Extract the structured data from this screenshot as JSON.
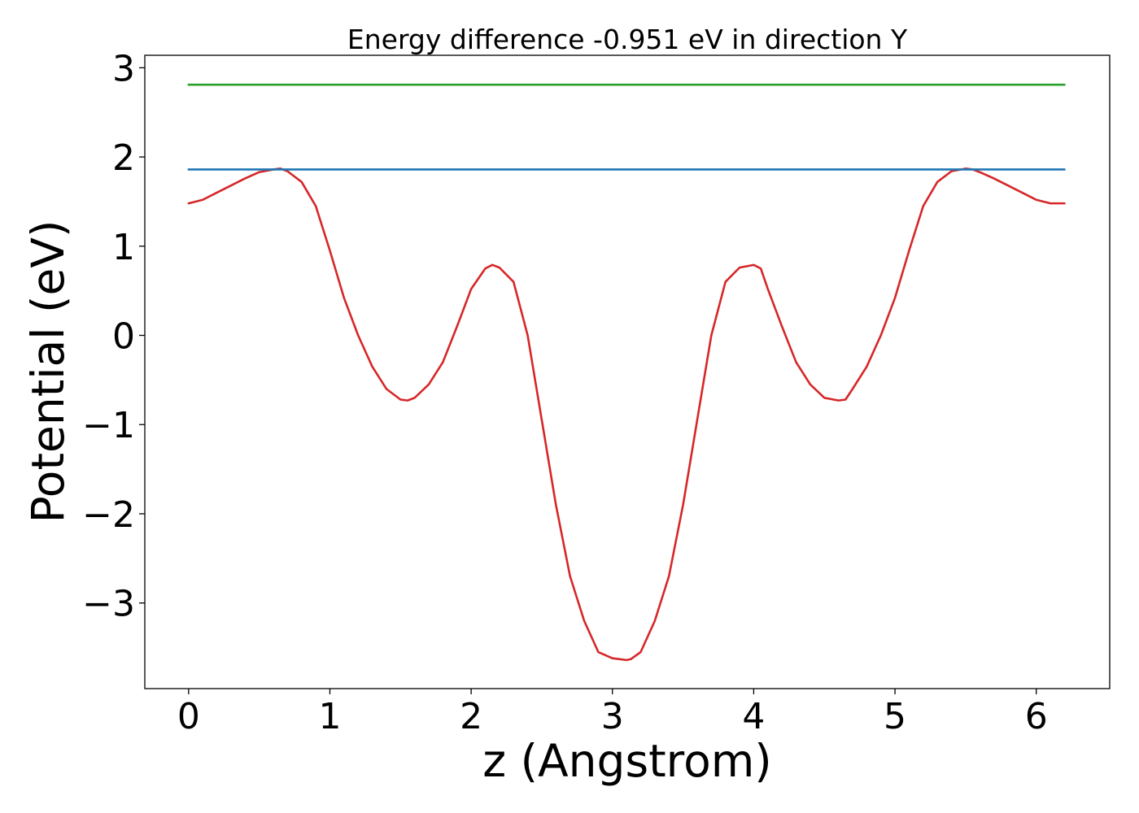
{
  "chart_data": {
    "type": "line",
    "title": "Energy difference -0.951 eV in direction Y",
    "xlabel": "z (Angstrom)",
    "ylabel": "Potential (eV)",
    "xlim": [
      -0.31,
      6.52
    ],
    "ylim": [
      -3.96,
      3.14
    ],
    "xticks": [
      0,
      1,
      2,
      3,
      4,
      5,
      6
    ],
    "yticks": [
      -3,
      -2,
      -1,
      0,
      1,
      2,
      3
    ],
    "xtick_labels": [
      "0",
      "1",
      "2",
      "3",
      "4",
      "5",
      "6"
    ],
    "ytick_labels": [
      "−3",
      "−2",
      "−1",
      "0",
      "1",
      "2",
      "3"
    ],
    "grid": false,
    "series": [
      {
        "color": "#d62728",
        "style": "curve",
        "x": [
          0.0,
          0.1,
          0.2,
          0.3,
          0.4,
          0.5,
          0.6,
          0.65,
          0.7,
          0.8,
          0.9,
          1.0,
          1.1,
          1.2,
          1.3,
          1.4,
          1.5,
          1.55,
          1.6,
          1.7,
          1.8,
          1.9,
          2.0,
          2.1,
          2.15,
          2.2,
          2.3,
          2.4,
          2.5,
          2.6,
          2.7,
          2.8,
          2.9,
          3.0,
          3.1,
          3.13,
          3.2,
          3.3,
          3.4,
          3.5,
          3.6,
          3.7,
          3.8,
          3.9,
          4.0,
          4.05,
          4.1,
          4.2,
          4.3,
          4.4,
          4.5,
          4.6,
          4.65,
          4.7,
          4.8,
          4.9,
          5.0,
          5.1,
          5.2,
          5.3,
          5.4,
          5.5,
          5.55,
          5.6,
          5.7,
          5.8,
          5.9,
          6.0,
          6.1,
          6.2
        ],
        "y": [
          1.48,
          1.52,
          1.6,
          1.68,
          1.76,
          1.83,
          1.86,
          1.87,
          1.84,
          1.72,
          1.45,
          0.95,
          0.42,
          0.0,
          -0.35,
          -0.6,
          -0.72,
          -0.73,
          -0.7,
          -0.55,
          -0.3,
          0.1,
          0.52,
          0.75,
          0.79,
          0.76,
          0.6,
          0.0,
          -0.95,
          -1.9,
          -2.7,
          -3.2,
          -3.55,
          -3.62,
          -3.64,
          -3.63,
          -3.55,
          -3.2,
          -2.7,
          -1.9,
          -0.95,
          0.0,
          0.6,
          0.76,
          0.79,
          0.75,
          0.52,
          0.1,
          -0.3,
          -0.55,
          -0.7,
          -0.73,
          -0.72,
          -0.6,
          -0.35,
          0.0,
          0.42,
          0.95,
          1.45,
          1.72,
          1.84,
          1.87,
          1.86,
          1.83,
          1.76,
          1.68,
          1.6,
          1.52,
          1.48,
          1.48
        ]
      },
      {
        "color": "#1f77b4",
        "style": "hline",
        "x": [
          0.0,
          6.2
        ],
        "y": [
          1.86,
          1.86
        ]
      },
      {
        "color": "#2ca02c",
        "style": "hline",
        "x": [
          0.0,
          6.2
        ],
        "y": [
          2.81,
          2.81
        ]
      }
    ]
  }
}
